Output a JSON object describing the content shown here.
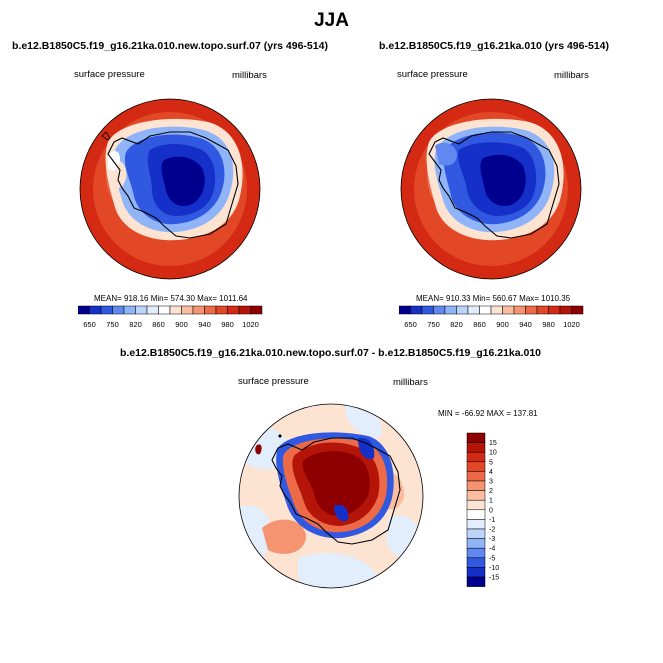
{
  "title": "JJA",
  "panels": [
    {
      "title": "b.e12.B1850C5.f19_g16.21ka.010.new.topo.surf.07 (yrs 496-514)",
      "left_label": "surface pressure",
      "right_label": "millibars",
      "stats": "MEAN= 918.16  Min= 574.30  Max= 1011.64"
    },
    {
      "title": "b.e12.B1850C5.f19_g16.21ka.010 (yrs 496-514)",
      "left_label": "surface pressure",
      "right_label": "millibars",
      "stats": "MEAN= 910.33  Min= 560.67  Max= 1010.35"
    },
    {
      "title": "b.e12.B1850C5.f19_g16.21ka.010.new.topo.surf.07 - b.e12.B1850C5.f19_g16.21ka.010",
      "left_label": "surface pressure",
      "right_label": "millibars",
      "stats": "MIN = -66.92 MAX = 137.81"
    }
  ],
  "colorbar_top": {
    "labels": [
      "650",
      "750",
      "820",
      "860",
      "900",
      "940",
      "980",
      "1020"
    ],
    "colors": [
      "#00008f",
      "#1530c8",
      "#3058e0",
      "#6088f0",
      "#90b4f8",
      "#bcd4fb",
      "#e3eefc",
      "#ffffff",
      "#fde3d2",
      "#fbbd9f",
      "#f59471",
      "#ec6a47",
      "#e34826",
      "#d42a14",
      "#b51509",
      "#8e0000"
    ]
  },
  "colorbar_diff": {
    "labels": [
      "15",
      "10",
      "5",
      "4",
      "3",
      "2",
      "1",
      "0",
      "-1",
      "-2",
      "-3",
      "-4",
      "-5",
      "-10",
      "-15"
    ],
    "colors": [
      "#8e0000",
      "#b51509",
      "#d42a14",
      "#e34826",
      "#ec6a47",
      "#f59471",
      "#fbbd9f",
      "#fde3d2",
      "#ffffff",
      "#e3eefc",
      "#bcd4fb",
      "#90b4f8",
      "#6088f0",
      "#3058e0",
      "#1530c8",
      "#00008f"
    ]
  }
}
